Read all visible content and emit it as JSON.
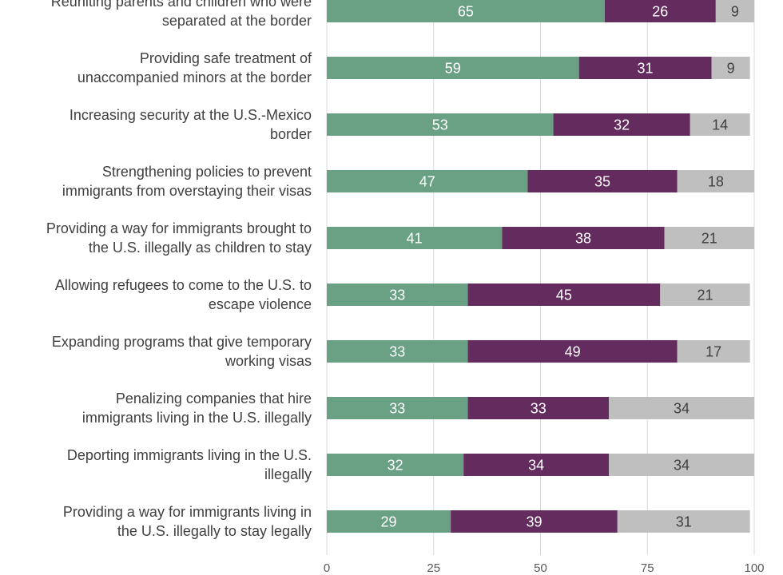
{
  "chart_data": {
    "type": "bar",
    "orientation": "horizontal",
    "stacked": true,
    "categories": [
      [
        "Reuniting parents and children who were",
        "separated at the border"
      ],
      [
        "Providing safe treatment of",
        "unaccompanied minors at the border"
      ],
      [
        "Increasing security at the U.S.-Mexico",
        "border"
      ],
      [
        "Strengthening policies to prevent",
        "immigrants from overstaying their visas"
      ],
      [
        "Providing a way for immigrants brought to",
        "the U.S. illegally as children to stay"
      ],
      [
        "Allowing refugees to come to the U.S. to",
        "escape violence"
      ],
      [
        "Expanding programs that give temporary",
        "working visas"
      ],
      [
        "Penalizing companies that hire",
        "immigrants living in the U.S. illegally"
      ],
      [
        "Deporting immigrants living in the U.S.",
        "illegally"
      ],
      [
        "Providing a way for immigrants living in",
        "the U.S. illegally to stay legally"
      ]
    ],
    "series": [
      {
        "color": "#6aa184",
        "label_color": "#ffffff",
        "values": [
          65,
          59,
          53,
          47,
          41,
          33,
          33,
          33,
          32,
          29
        ]
      },
      {
        "color": "#642c5e",
        "label_color": "#ffffff",
        "values": [
          26,
          31,
          32,
          35,
          38,
          45,
          49,
          33,
          34,
          39
        ]
      },
      {
        "color": "#bfbfbf",
        "label_color": "#404040",
        "values": [
          9,
          9,
          14,
          18,
          21,
          21,
          17,
          34,
          34,
          31
        ]
      }
    ],
    "xlim": [
      0,
      100
    ],
    "xticks": [
      0,
      25,
      50,
      75,
      100
    ],
    "grid": "vertical",
    "legend": "none"
  }
}
